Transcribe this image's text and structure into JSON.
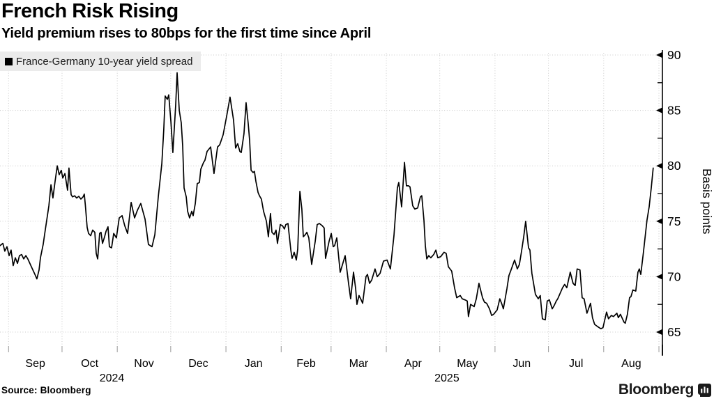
{
  "header": {
    "title": "French Risk Rising",
    "subtitle": "Yield premium rises to 80bps for the first time since April"
  },
  "legend": {
    "label": "France-Germany 10-year yield spread"
  },
  "footer": {
    "source": "Source: Bloomberg",
    "brand": "Bloomberg"
  },
  "chart_data": {
    "type": "line",
    "title": "French Risk Rising",
    "subtitle": "Yield premium rises to 80bps for the first time since April",
    "ylabel": "Basis points",
    "ylim": [
      63.4,
      90.3
    ],
    "yticks": [
      65,
      70,
      75,
      80,
      85,
      90
    ],
    "yticks_minor": [
      67.5,
      72.5,
      77.5,
      82.5,
      87.5
    ],
    "grid": "dotted",
    "legend_position": "top-left",
    "x_axis": {
      "unit": "days since Sep 1, 2024",
      "month_labels": [
        "Sep",
        "Oct",
        "Nov",
        "Dec",
        "Jan",
        "Feb",
        "Mar",
        "Apr",
        "May",
        "Jun",
        "Jul",
        "Aug"
      ],
      "month_boundary_days": [
        0,
        30,
        61,
        91,
        122,
        153,
        181,
        212,
        242,
        273,
        303,
        334,
        365
      ],
      "year_labels": [
        {
          "text": "2024",
          "day": 58
        },
        {
          "text": "2025",
          "day": 246
        }
      ]
    },
    "series": [
      {
        "name": "France-Germany 10-year yield spread",
        "color": "#000000",
        "points": [
          [
            -4.8,
            72.8
          ],
          [
            -3.2,
            73.0
          ],
          [
            -2.1,
            72.3
          ],
          [
            -0.9,
            72.7
          ],
          [
            0.3,
            71.9
          ],
          [
            1.4,
            72.4
          ],
          [
            2.6,
            71.0
          ],
          [
            3.8,
            71.7
          ],
          [
            5.0,
            71.2
          ],
          [
            6.1,
            71.9
          ],
          [
            7.3,
            72.0
          ],
          [
            8.5,
            71.6
          ],
          [
            9.7,
            71.9
          ],
          [
            10.8,
            71.6
          ],
          [
            12.8,
            70.9
          ],
          [
            14.8,
            70.2
          ],
          [
            15.9,
            69.8
          ],
          [
            17.1,
            70.6
          ],
          [
            17.9,
            71.7
          ],
          [
            19.4,
            72.9
          ],
          [
            20.6,
            74.2
          ],
          [
            21.8,
            75.5
          ],
          [
            22.6,
            76.4
          ],
          [
            23.8,
            78.3
          ],
          [
            24.9,
            77.1
          ],
          [
            26.1,
            78.6
          ],
          [
            27.3,
            80.0
          ],
          [
            28.4,
            79.2
          ],
          [
            29.6,
            79.6
          ],
          [
            30.4,
            78.9
          ],
          [
            31.6,
            79.3
          ],
          [
            33.1,
            77.8
          ],
          [
            33.9,
            79.8
          ],
          [
            35.1,
            77.4
          ],
          [
            35.9,
            77.2
          ],
          [
            37.1,
            77.3
          ],
          [
            38.2,
            77.1
          ],
          [
            39.4,
            77.25
          ],
          [
            40.6,
            77.0
          ],
          [
            41.8,
            77.2
          ],
          [
            42.5,
            77.45
          ],
          [
            43.1,
            76.45
          ],
          [
            44.1,
            74.45
          ],
          [
            44.9,
            73.9
          ],
          [
            46.1,
            73.7
          ],
          [
            47.2,
            74.2
          ],
          [
            48.4,
            74.0
          ],
          [
            49.2,
            72.1
          ],
          [
            50.0,
            71.6
          ],
          [
            51.1,
            73.9
          ],
          [
            51.9,
            74.0
          ],
          [
            52.7,
            73.0
          ],
          [
            53.9,
            73.6
          ],
          [
            54.7,
            74.1
          ],
          [
            55.8,
            74.5
          ],
          [
            56.6,
            72.7
          ],
          [
            57.8,
            72.6
          ],
          [
            59.0,
            73.9
          ],
          [
            60.5,
            73.5
          ],
          [
            62.1,
            75.3
          ],
          [
            63.7,
            75.5
          ],
          [
            65.2,
            74.6
          ],
          [
            66.8,
            73.9
          ],
          [
            68.8,
            76.7
          ],
          [
            70.7,
            75.3
          ],
          [
            72.3,
            76.0
          ],
          [
            74.2,
            76.6
          ],
          [
            76.6,
            75.2
          ],
          [
            78.5,
            72.9
          ],
          [
            80.5,
            72.7
          ],
          [
            82.1,
            73.8
          ],
          [
            84.0,
            77.2
          ],
          [
            86.0,
            80.2
          ],
          [
            87.1,
            83.3
          ],
          [
            87.9,
            86.3
          ],
          [
            89.1,
            86.0
          ],
          [
            89.9,
            86.4
          ],
          [
            91.1,
            84.0
          ],
          [
            92.2,
            81.2
          ],
          [
            93.8,
            85.5
          ],
          [
            94.6,
            88.4
          ],
          [
            95.8,
            85.0
          ],
          [
            96.9,
            83.9
          ],
          [
            97.7,
            81.8
          ],
          [
            98.5,
            78.0
          ],
          [
            99.7,
            77.2
          ],
          [
            100.5,
            75.9
          ],
          [
            101.6,
            75.3
          ],
          [
            102.8,
            75.9
          ],
          [
            103.6,
            75.5
          ],
          [
            104.8,
            76.6
          ],
          [
            105.9,
            78.4
          ],
          [
            107.1,
            78.5
          ],
          [
            107.9,
            79.7
          ],
          [
            109.4,
            80.3
          ],
          [
            110.2,
            80.5
          ],
          [
            111.4,
            81.3
          ],
          [
            113.4,
            81.7
          ],
          [
            115.3,
            79.3
          ],
          [
            117.3,
            81.7
          ],
          [
            118.5,
            81.9
          ],
          [
            120.4,
            82.8
          ],
          [
            122.4,
            84.5
          ],
          [
            124.3,
            86.2
          ],
          [
            126.3,
            84.1
          ],
          [
            127.4,
            81.6
          ],
          [
            128.6,
            82.0
          ],
          [
            129.8,
            81.3
          ],
          [
            130.6,
            81.2
          ],
          [
            132.1,
            82.9
          ],
          [
            133.3,
            85.7
          ],
          [
            134.5,
            83.8
          ],
          [
            135.3,
            82.3
          ],
          [
            136.1,
            79.6
          ],
          [
            137.2,
            79.4
          ],
          [
            138.0,
            79.5
          ],
          [
            138.8,
            78.6
          ],
          [
            140.0,
            77.6
          ],
          [
            140.8,
            77.3
          ],
          [
            141.9,
            77.0
          ],
          [
            143.1,
            75.9
          ],
          [
            144.7,
            75.0
          ],
          [
            145.8,
            73.6
          ],
          [
            147.0,
            75.7
          ],
          [
            147.8,
            74.0
          ],
          [
            149.0,
            73.8
          ],
          [
            150.1,
            74.2
          ],
          [
            150.9,
            73.0
          ],
          [
            152.5,
            74.7
          ],
          [
            153.7,
            74.6
          ],
          [
            154.8,
            74.3
          ],
          [
            155.6,
            74.7
          ],
          [
            156.8,
            74.8
          ],
          [
            158.4,
            72.4
          ],
          [
            159.1,
            71.65
          ],
          [
            160.3,
            72.2
          ],
          [
            161.5,
            71.5
          ],
          [
            162.3,
            72.5
          ],
          [
            163.5,
            77.7
          ],
          [
            164.6,
            76.1
          ],
          [
            165.4,
            73.6
          ],
          [
            166.6,
            73.8
          ],
          [
            167.4,
            74.0
          ],
          [
            168.5,
            73.5
          ],
          [
            170.1,
            71.1
          ],
          [
            172.1,
            73.2
          ],
          [
            173.2,
            74.7
          ],
          [
            174.4,
            74.8
          ],
          [
            176.0,
            74.6
          ],
          [
            177.1,
            74.4
          ],
          [
            177.9,
            71.65
          ],
          [
            179.9,
            73.2
          ],
          [
            181.1,
            73.9
          ],
          [
            182.2,
            72.7
          ],
          [
            183.0,
            72.8
          ],
          [
            184.2,
            73.5
          ],
          [
            186.1,
            70.4
          ],
          [
            188.9,
            71.9
          ],
          [
            190.8,
            69.4
          ],
          [
            192.0,
            68.0
          ],
          [
            193.6,
            70.4
          ],
          [
            194.8,
            68.9
          ],
          [
            195.5,
            67.5
          ],
          [
            196.7,
            68.3
          ],
          [
            197.9,
            67.9
          ],
          [
            198.7,
            67.6
          ],
          [
            200.6,
            70.0
          ],
          [
            201.4,
            70.2
          ],
          [
            202.6,
            69.4
          ],
          [
            203.8,
            69.7
          ],
          [
            205.7,
            70.7
          ],
          [
            206.9,
            70.0
          ],
          [
            208.5,
            70.3
          ],
          [
            210.4,
            71.4
          ],
          [
            212.4,
            71.5
          ],
          [
            214.3,
            70.7
          ],
          [
            216.3,
            73.7
          ],
          [
            217.5,
            76.4
          ],
          [
            218.2,
            78.0
          ],
          [
            219.0,
            78.5
          ],
          [
            220.6,
            76.3
          ],
          [
            222.2,
            80.3
          ],
          [
            223.3,
            78.2
          ],
          [
            224.5,
            78.2
          ],
          [
            225.3,
            78.1
          ],
          [
            226.8,
            76.4
          ],
          [
            228.0,
            76.1
          ],
          [
            229.6,
            76.2
          ],
          [
            231.1,
            77.2
          ],
          [
            231.9,
            77.3
          ],
          [
            233.1,
            75.1
          ],
          [
            233.9,
            72.8
          ],
          [
            234.7,
            71.6
          ],
          [
            235.8,
            71.9
          ],
          [
            237.0,
            71.7
          ],
          [
            238.6,
            72.0
          ],
          [
            239.8,
            72.4
          ],
          [
            240.9,
            71.7
          ],
          [
            242.5,
            71.8
          ],
          [
            244.4,
            72.2
          ],
          [
            245.6,
            72.1
          ],
          [
            246.8,
            70.9
          ],
          [
            248.7,
            70.5
          ],
          [
            250.3,
            69.0
          ],
          [
            251.5,
            68.1
          ],
          [
            253.5,
            68.3
          ],
          [
            254.6,
            68.0
          ],
          [
            256.2,
            67.9
          ],
          [
            257.4,
            67.8
          ],
          [
            258.1,
            66.4
          ],
          [
            259.3,
            67.5
          ],
          [
            261.3,
            67.3
          ],
          [
            262.5,
            68.0
          ],
          [
            264.0,
            69.4
          ],
          [
            266.0,
            68.1
          ],
          [
            267.1,
            67.7
          ],
          [
            268.3,
            67.6
          ],
          [
            269.9,
            67.1
          ],
          [
            271.1,
            66.5
          ],
          [
            272.2,
            66.6
          ],
          [
            274.2,
            67.0
          ],
          [
            275.7,
            68.0
          ],
          [
            276.9,
            67.5
          ],
          [
            277.7,
            67.1
          ],
          [
            279.7,
            68.9
          ],
          [
            280.8,
            70.1
          ],
          [
            282.0,
            70.6
          ],
          [
            284.0,
            71.5
          ],
          [
            285.5,
            70.7
          ],
          [
            286.7,
            71.1
          ],
          [
            287.9,
            72.3
          ],
          [
            289.1,
            73.6
          ],
          [
            290.2,
            75.0
          ],
          [
            291.8,
            72.6
          ],
          [
            292.6,
            72.4
          ],
          [
            293.7,
            70.3
          ],
          [
            295.7,
            68.4
          ],
          [
            297.3,
            68.0
          ],
          [
            298.4,
            68.3
          ],
          [
            299.6,
            66.2
          ],
          [
            301.2,
            66.1
          ],
          [
            302.3,
            67.8
          ],
          [
            303.5,
            67.9
          ],
          [
            305.1,
            67.1
          ],
          [
            306.2,
            67.4
          ],
          [
            307.4,
            67.8
          ],
          [
            308.2,
            68.0
          ],
          [
            310.9,
            69.0
          ],
          [
            312.1,
            69.3
          ],
          [
            313.3,
            69.0
          ],
          [
            315.2,
            70.4
          ],
          [
            316.8,
            69.4
          ],
          [
            318.0,
            69.2
          ],
          [
            319.1,
            70.7
          ],
          [
            320.7,
            70.6
          ],
          [
            321.9,
            68.1
          ],
          [
            323.0,
            68.0
          ],
          [
            324.6,
            66.7
          ],
          [
            326.6,
            67.6
          ],
          [
            327.7,
            66.3
          ],
          [
            328.9,
            65.7
          ],
          [
            330.5,
            65.5
          ],
          [
            332.4,
            65.3
          ],
          [
            333.6,
            65.4
          ],
          [
            335.6,
            66.8
          ],
          [
            336.7,
            66.2
          ],
          [
            338.3,
            66.5
          ],
          [
            339.5,
            66.4
          ],
          [
            341.4,
            66.7
          ],
          [
            342.2,
            66.3
          ],
          [
            343.4,
            66.6
          ],
          [
            345.4,
            65.9
          ],
          [
            346.1,
            65.8
          ],
          [
            347.3,
            66.6
          ],
          [
            348.5,
            68.1
          ],
          [
            349.3,
            68.2
          ],
          [
            350.4,
            68.8
          ],
          [
            352.0,
            68.7
          ],
          [
            353.2,
            70.4
          ],
          [
            354.0,
            70.7
          ],
          [
            354.8,
            70.2
          ],
          [
            356.3,
            72.2
          ],
          [
            358.3,
            75.1
          ],
          [
            359.5,
            76.3
          ],
          [
            360.7,
            78.0
          ],
          [
            361.8,
            79.8
          ]
        ]
      }
    ]
  }
}
